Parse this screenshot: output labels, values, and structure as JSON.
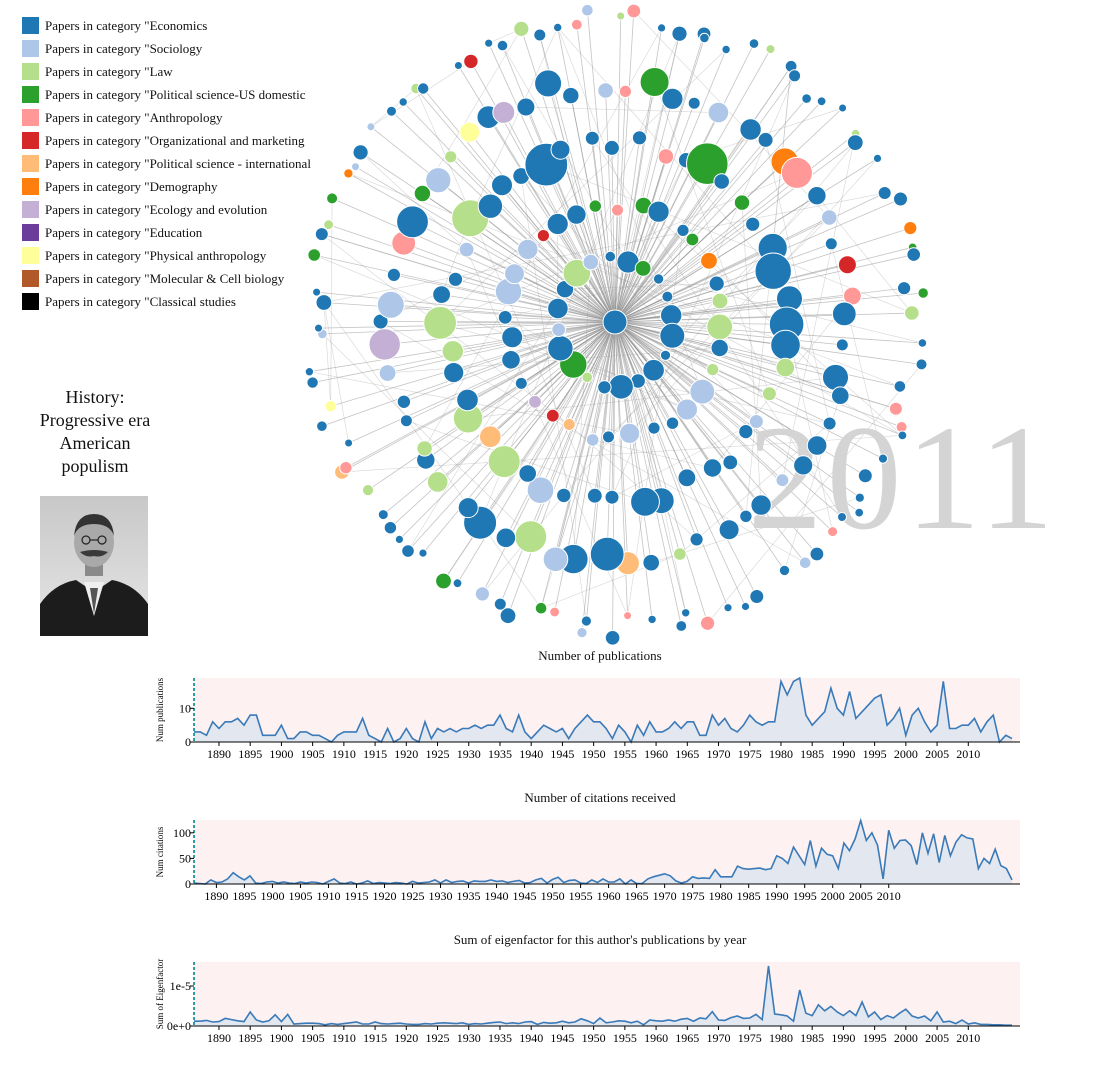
{
  "legend": [
    {
      "label": "Papers in category \"Economics",
      "color": "#1f77b4"
    },
    {
      "label": "Papers in category \"Sociology",
      "color": "#aec7e8"
    },
    {
      "label": "Papers in category \"Law",
      "color": "#b5df8a"
    },
    {
      "label": "Papers in category \"Political science-US domestic",
      "color": "#2ca02c"
    },
    {
      "label": "Papers in category \"Anthropology",
      "color": "#ff9896"
    },
    {
      "label": "Papers in category \"Organizational and marketing",
      "color": "#d62728"
    },
    {
      "label": "Papers in category \"Political science - international",
      "color": "#ffbb78"
    },
    {
      "label": "Papers in category \"Demography",
      "color": "#ff7f0e"
    },
    {
      "label": "Papers in category \"Ecology and evolution",
      "color": "#c5b0d5"
    },
    {
      "label": "Papers in category \"Education",
      "color": "#6a3d9a"
    },
    {
      "label": "Papers in category \"Physical anthropology",
      "color": "#ffff99"
    },
    {
      "label": "Papers in category \"Molecular & Cell biology",
      "color": "#b15928"
    },
    {
      "label": "Papers in category \"Classical studies",
      "color": "#000000"
    }
  ],
  "topic": {
    "line1": "History:",
    "line2": "Progressive era",
    "line3": "American",
    "line4": "populism"
  },
  "year_label": "2011",
  "colors": {
    "line": "#3a7ab8",
    "fill": "#dfe5ef",
    "band": "#fdf1f1",
    "marker": "#2aa1a1",
    "year": "#d4d4d4"
  },
  "chart_data": [
    {
      "type": "area",
      "title": "Number of publications",
      "xlabel": "",
      "ylabel": "Num publications",
      "ylim": [
        0,
        19
      ],
      "yticks": [
        {
          "label": "0",
          "value": 0
        },
        {
          "label": "10",
          "value": 10
        }
      ],
      "xticks": [
        "1890",
        "1895",
        "1900",
        "1905",
        "1910",
        "1915",
        "1920",
        "1925",
        "1930",
        "1935",
        "1940",
        "1945",
        "1950",
        "1955",
        "1960",
        "1965",
        "1970",
        "1975",
        "1980",
        "1985",
        "1990",
        "1995",
        "2000",
        "2005",
        "2010"
      ],
      "x_start": 1886,
      "values": [
        3,
        3,
        2,
        6,
        4,
        6,
        6,
        7,
        5,
        8,
        8,
        2,
        2,
        2,
        5,
        1,
        1,
        3,
        3,
        2,
        2,
        1,
        0,
        2,
        3,
        3,
        3,
        7,
        2,
        1,
        0,
        4,
        0,
        1,
        4,
        1,
        0,
        6,
        1,
        4,
        3,
        4,
        3,
        4,
        4,
        5,
        4,
        5,
        5,
        8,
        4,
        3,
        8,
        3,
        1,
        3,
        5,
        4,
        3,
        4,
        1,
        4,
        6,
        8,
        6,
        6,
        4,
        1,
        5,
        3,
        0,
        5,
        2,
        6,
        3,
        3,
        4,
        6,
        4,
        6,
        6,
        2,
        2,
        8,
        5,
        7,
        4,
        3,
        5,
        8,
        6,
        5,
        6,
        6,
        18,
        14,
        18,
        19,
        8,
        5,
        7,
        9,
        16,
        10,
        8,
        15,
        7,
        9,
        11,
        13,
        14,
        5,
        7,
        10,
        2,
        8,
        10,
        6,
        3,
        5,
        18,
        4,
        4,
        5,
        5,
        7,
        3,
        6,
        8,
        0,
        2,
        1
      ]
    },
    {
      "type": "area",
      "title": "Number of citations received",
      "xlabel": "",
      "ylabel": "Num citations",
      "ylim": [
        0,
        125
      ],
      "yticks": [
        {
          "label": "0",
          "value": 0
        },
        {
          "label": "50",
          "value": 50
        },
        {
          "label": "100",
          "value": 100
        }
      ],
      "xticks": [
        "1890",
        "1895",
        "1900",
        "1905",
        "1910",
        "1915",
        "1920",
        "1925",
        "1930",
        "1935",
        "1940",
        "1945",
        "1950",
        "1955",
        "1960",
        "1965",
        "1970",
        "1975",
        "1980",
        "1985",
        "1990",
        "1995",
        "2000",
        "2005",
        "2010"
      ],
      "x_start": 1886,
      "values": [
        2,
        1,
        0,
        8,
        3,
        4,
        10,
        22,
        14,
        8,
        16,
        2,
        1,
        4,
        5,
        2,
        4,
        2,
        1,
        4,
        2,
        4,
        3,
        0,
        5,
        10,
        2,
        1,
        4,
        0,
        2,
        6,
        1,
        3,
        2,
        1,
        3,
        2,
        0,
        5,
        2,
        3,
        4,
        8,
        2,
        8,
        3,
        5,
        6,
        2,
        6,
        5,
        5,
        8,
        5,
        6,
        3,
        5,
        7,
        2,
        3,
        8,
        11,
        2,
        9,
        13,
        3,
        7,
        8,
        2,
        1,
        8,
        3,
        10,
        4,
        4,
        10,
        0,
        8,
        1,
        1,
        10,
        14,
        17,
        20,
        16,
        6,
        2,
        5,
        14,
        11,
        12,
        11,
        28,
        14,
        14,
        14,
        35,
        30,
        29,
        30,
        31,
        28,
        30,
        55,
        50,
        40,
        72,
        55,
        38,
        85,
        35,
        70,
        58,
        55,
        30,
        80,
        65,
        88,
        124,
        85,
        100,
        76,
        10,
        105,
        70,
        85,
        86,
        75,
        38,
        100,
        60,
        98,
        42,
        95,
        55,
        82,
        96,
        90,
        88,
        30,
        50,
        40,
        68,
        36,
        30,
        8
      ]
    },
    {
      "type": "area",
      "title": "Sum of eigenfactor for this author's publications by year",
      "xlabel": "",
      "ylabel": "Sum of Eigenfactor",
      "ylim": [
        0,
        1.6e-05
      ],
      "yticks": [
        {
          "label": "0e+0",
          "value": 0
        },
        {
          "label": "1e-5",
          "value": 1e-05
        }
      ],
      "xticks": [
        "1890",
        "1895",
        "1900",
        "1905",
        "1910",
        "1915",
        "1920",
        "1925",
        "1930",
        "1935",
        "1940",
        "1945",
        "1950",
        "1955",
        "1960",
        "1965",
        "1970",
        "1975",
        "1980",
        "1985",
        "1990",
        "1995",
        "2000",
        "2005",
        "2010"
      ],
      "x_start": 1886,
      "values": [
        1.2e-06,
        1.2e-06,
        1.4e-06,
        1e-06,
        1.1e-06,
        1.9e-06,
        1.6e-06,
        1.3e-06,
        1.1e-06,
        3.5e-06,
        1.5e-06,
        1e-06,
        1.3e-06,
        2.8e-06,
        1.1e-06,
        2.9e-06,
        5e-07,
        6e-07,
        7e-07,
        7e-07,
        6e-07,
        3e-07,
        6e-07,
        4e-07,
        6e-07,
        8e-07,
        1e-06,
        5e-07,
        5e-07,
        1e-06,
        6e-07,
        5e-07,
        6e-07,
        7e-07,
        5e-07,
        4e-07,
        4e-07,
        6e-07,
        5e-07,
        7e-07,
        8e-07,
        7e-07,
        6e-07,
        8e-07,
        4e-07,
        6e-07,
        5e-07,
        7e-07,
        9e-07,
        1e-06,
        6e-07,
        8e-07,
        6e-07,
        1e-06,
        1.1e-06,
        4e-07,
        9e-07,
        7e-07,
        8e-07,
        1.2e-06,
        8e-07,
        1e-06,
        1.8e-06,
        1.3e-06,
        6e-07,
        2e-06,
        8e-07,
        1e-06,
        1.3e-06,
        1.2e-06,
        8e-07,
        1.2e-06,
        3e-07,
        1.5e-06,
        1.3e-06,
        1.2e-06,
        1.5e-06,
        1.2e-06,
        1.7e-06,
        1.9e-06,
        1.2e-06,
        2e-06,
        1.8e-06,
        3.6e-06,
        1.5e-06,
        1.4e-06,
        2.1e-06,
        2.5e-06,
        1.9e-06,
        2e-06,
        2.9e-06,
        1.6e-06,
        1.5e-05,
        3e-06,
        2.8e-06,
        2.5e-06,
        1.2e-06,
        9e-06,
        3.2e-06,
        2.6e-06,
        5.3e-06,
        3.8e-06,
        4.9e-06,
        3.5e-06,
        2.6e-06,
        3.8e-06,
        2.6e-06,
        6e-06,
        2.3e-06,
        3.5e-06,
        1.6e-06,
        2.6e-06,
        2e-06,
        3.2e-06,
        4.2e-06,
        2.5e-06,
        2e-06,
        2.5e-06,
        1.3e-06,
        3.5e-06,
        1e-06,
        1.2e-06,
        6e-07,
        1.5e-06,
        5e-07,
        8e-07,
        4e-07,
        4e-07,
        3e-07,
        3e-07,
        2e-07,
        2e-07
      ]
    }
  ]
}
